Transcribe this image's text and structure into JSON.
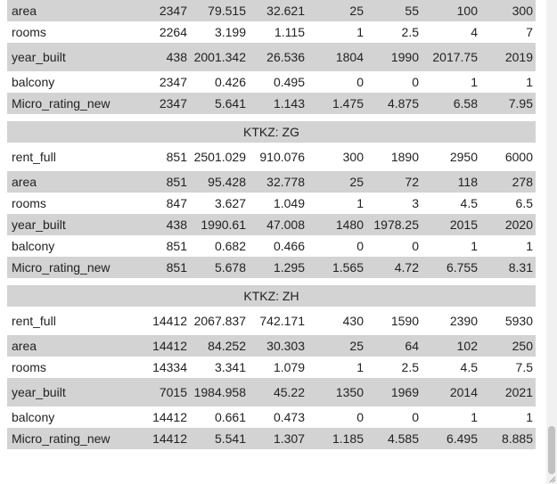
{
  "groups": [
    {
      "caption": "",
      "rows": [
        {
          "label": "area",
          "values": [
            "2347",
            "79.515",
            "32.621",
            "25",
            "55",
            "100",
            "300"
          ]
        },
        {
          "label": "rooms",
          "values": [
            "2264",
            "3.199",
            "1.115",
            "1",
            "2.5",
            "4",
            "7"
          ]
        },
        {
          "label": "year_built",
          "values": [
            "438",
            "2001.342",
            "26.536",
            "1804",
            "1990",
            "2017.75",
            "2019"
          ]
        },
        {
          "label": "balcony",
          "values": [
            "2347",
            "0.426",
            "0.495",
            "0",
            "0",
            "1",
            "1"
          ]
        },
        {
          "label": "Micro_rating_new",
          "values": [
            "2347",
            "5.641",
            "1.143",
            "1.475",
            "4.875",
            "6.58",
            "7.95"
          ]
        }
      ]
    },
    {
      "caption": "KTKZ: ZG",
      "rows": [
        {
          "label": "rent_full",
          "values": [
            "851",
            "2501.029",
            "910.076",
            "300",
            "1890",
            "2950",
            "6000"
          ]
        },
        {
          "label": "area",
          "values": [
            "851",
            "95.428",
            "32.778",
            "25",
            "72",
            "118",
            "278"
          ]
        },
        {
          "label": "rooms",
          "values": [
            "847",
            "3.627",
            "1.049",
            "1",
            "3",
            "4.5",
            "6.5"
          ]
        },
        {
          "label": "year_built",
          "values": [
            "438",
            "1990.61",
            "47.008",
            "1480",
            "1978.25",
            "2015",
            "2020"
          ]
        },
        {
          "label": "balcony",
          "values": [
            "851",
            "0.682",
            "0.466",
            "0",
            "0",
            "1",
            "1"
          ]
        },
        {
          "label": "Micro_rating_new",
          "values": [
            "851",
            "5.678",
            "1.295",
            "1.565",
            "4.72",
            "6.755",
            "8.31"
          ]
        }
      ]
    },
    {
      "caption": "KTKZ: ZH",
      "rows": [
        {
          "label": "rent_full",
          "values": [
            "14412",
            "2067.837",
            "742.171",
            "430",
            "1590",
            "2390",
            "5930"
          ]
        },
        {
          "label": "area",
          "values": [
            "14412",
            "84.252",
            "30.303",
            "25",
            "64",
            "102",
            "250"
          ]
        },
        {
          "label": "rooms",
          "values": [
            "14334",
            "3.341",
            "1.079",
            "1",
            "2.5",
            "4.5",
            "7.5"
          ]
        },
        {
          "label": "year_built",
          "values": [
            "7015",
            "1984.958",
            "45.22",
            "1350",
            "1969",
            "2014",
            "2021"
          ]
        },
        {
          "label": "balcony",
          "values": [
            "14412",
            "0.661",
            "0.473",
            "0",
            "0",
            "1",
            "1"
          ]
        },
        {
          "label": "Micro_rating_new",
          "values": [
            "14412",
            "5.541",
            "1.307",
            "1.185",
            "4.585",
            "6.495",
            "8.885"
          ]
        }
      ]
    }
  ]
}
